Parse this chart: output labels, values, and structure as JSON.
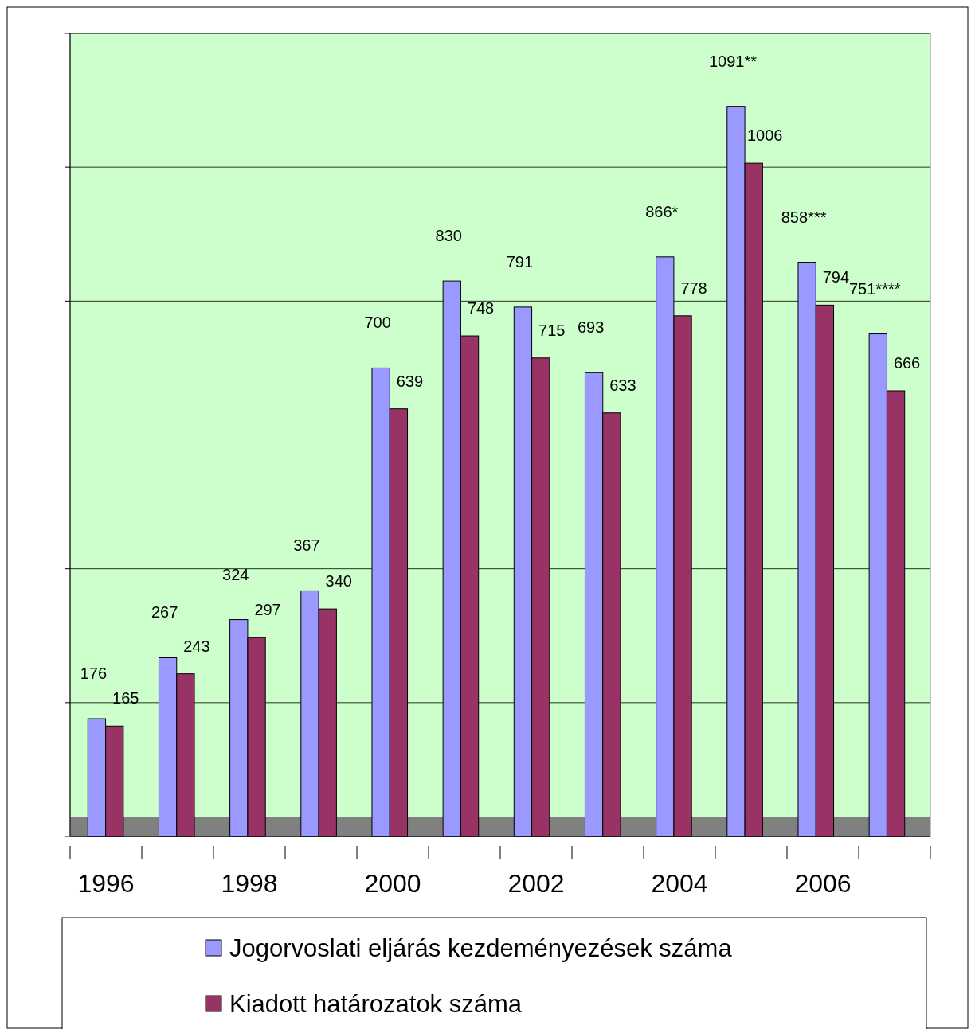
{
  "chart_data": {
    "type": "bar",
    "categories": [
      "1996",
      null,
      "1998",
      null,
      "2000",
      null,
      "2002",
      null,
      "2004",
      null,
      "2006",
      null
    ],
    "series": [
      {
        "name": "Jogorvoslati eljárás kezdeményezések száma",
        "color": "#9999ff",
        "values": [
          176,
          267,
          324,
          367,
          700,
          830,
          791,
          693,
          866,
          1091,
          858,
          751
        ],
        "value_labels": [
          "176",
          "267",
          "324",
          "367",
          "700",
          "830",
          "791",
          "693",
          "866*",
          "1091**",
          "858***",
          "751****"
        ]
      },
      {
        "name": "Kiadott határozatok száma",
        "color": "#993366",
        "values": [
          165,
          243,
          297,
          340,
          639,
          748,
          715,
          633,
          778,
          1006,
          794,
          666
        ],
        "value_labels": [
          "165",
          "243",
          "297",
          "340",
          "639",
          "748",
          "715",
          "633",
          "778",
          "1006",
          "794",
          "666"
        ]
      }
    ],
    "ylim": [
      0,
      1200
    ],
    "yticks": [
      {
        "value": 0,
        "label": null
      },
      {
        "value": 200,
        "label": null
      },
      {
        "value": 400,
        "label": null
      },
      {
        "value": 600,
        "label": null
      },
      {
        "value": 800,
        "label": null
      },
      {
        "value": 1000,
        "label": null
      },
      {
        "value": 1200,
        "label": null
      }
    ],
    "grid": "y",
    "tick_labels": "x",
    "legend": "bottom"
  }
}
